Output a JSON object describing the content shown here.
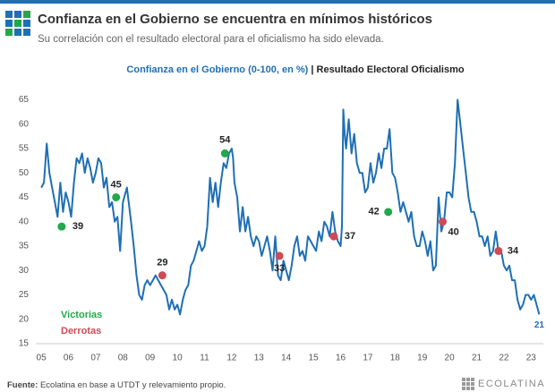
{
  "chart_data": {
    "type": "line",
    "title": "Confianza en el Gobierno se encuentra en mínimos históricos",
    "subtitle": "Su correlación con el resultado electoral para el oficialismo ha sido elevada.",
    "header_right": "| Resultado Electoral Oficialismo",
    "source_label": "Fuente:",
    "source": "Ecolatina en base a UTDT y relevamiento propio.",
    "brand": "ECOLATINA",
    "xlim": [
      2004.8,
      2023.45
    ],
    "ylim": [
      15,
      66
    ],
    "yticks": [
      15,
      20,
      25,
      30,
      35,
      40,
      45,
      50,
      55,
      60,
      65
    ],
    "xticks": [
      {
        "value": 2005,
        "label": "05"
      },
      {
        "value": 2006,
        "label": "06"
      },
      {
        "value": 2007,
        "label": "07"
      },
      {
        "value": 2008,
        "label": "08"
      },
      {
        "value": 2009,
        "label": "09"
      },
      {
        "value": 2010,
        "label": "10"
      },
      {
        "value": 2011,
        "label": "11"
      },
      {
        "value": 2012,
        "label": "12"
      },
      {
        "value": 2013,
        "label": "13"
      },
      {
        "value": 2014,
        "label": "14"
      },
      {
        "value": 2015,
        "label": "15"
      },
      {
        "value": 2016,
        "label": "16"
      },
      {
        "value": 2017,
        "label": "17"
      },
      {
        "value": 2018,
        "label": "18"
      },
      {
        "value": 2019,
        "label": "19"
      },
      {
        "value": 2020,
        "label": "20"
      },
      {
        "value": 2021,
        "label": "21"
      },
      {
        "value": 2022,
        "label": "22"
      },
      {
        "value": 2023,
        "label": "23"
      }
    ],
    "series": [
      {
        "name": "Confianza en el Gobierno (0-100, en %)",
        "type": "line",
        "color": "#1f6fb5",
        "x": [
          2005.0,
          2005.1,
          2005.2,
          2005.3,
          2005.4,
          2005.5,
          2005.6,
          2005.7,
          2005.8,
          2005.9,
          2006.0,
          2006.1,
          2006.2,
          2006.3,
          2006.4,
          2006.5,
          2006.6,
          2006.7,
          2006.8,
          2006.9,
          2007.0,
          2007.1,
          2007.2,
          2007.3,
          2007.4,
          2007.5,
          2007.6,
          2007.7,
          2007.8,
          2007.9,
          2008.0,
          2008.1,
          2008.15,
          2008.3,
          2008.4,
          2008.5,
          2008.6,
          2008.7,
          2008.8,
          2008.9,
          2009.0,
          2009.2,
          2009.4,
          2009.6,
          2009.7,
          2009.8,
          2009.9,
          2010.0,
          2010.1,
          2010.2,
          2010.3,
          2010.4,
          2010.5,
          2010.6,
          2010.7,
          2010.8,
          2010.9,
          2011.0,
          2011.1,
          2011.2,
          2011.3,
          2011.4,
          2011.5,
          2011.6,
          2011.7,
          2011.8,
          2011.9,
          2012.0,
          2012.05,
          2012.1,
          2012.2,
          2012.3,
          2012.4,
          2012.5,
          2012.6,
          2012.7,
          2012.8,
          2012.9,
          2013.0,
          2013.1,
          2013.2,
          2013.3,
          2013.4,
          2013.5,
          2013.6,
          2013.7,
          2013.8,
          2013.9,
          2014.0,
          2014.1,
          2014.2,
          2014.3,
          2014.4,
          2014.5,
          2014.6,
          2014.7,
          2014.8,
          2014.9,
          2015.0,
          2015.1,
          2015.2,
          2015.3,
          2015.4,
          2015.5,
          2015.6,
          2015.7,
          2015.8,
          2015.9,
          2016.0,
          2016.05,
          2016.1,
          2016.15,
          2016.2,
          2016.3,
          2016.4,
          2016.5,
          2016.6,
          2016.7,
          2016.8,
          2016.9,
          2017.0,
          2017.1,
          2017.2,
          2017.3,
          2017.4,
          2017.5,
          2017.6,
          2017.7,
          2017.8,
          2017.9,
          2018.0,
          2018.1,
          2018.2,
          2018.3,
          2018.4,
          2018.5,
          2018.6,
          2018.7,
          2018.8,
          2018.9,
          2019.0,
          2019.1,
          2019.2,
          2019.3,
          2019.4,
          2019.5,
          2019.6,
          2019.7,
          2019.8,
          2019.9,
          2020.0,
          2020.1,
          2020.2,
          2020.3,
          2020.4,
          2020.5,
          2020.6,
          2020.7,
          2020.8,
          2020.9,
          2021.0,
          2021.1,
          2021.2,
          2021.3,
          2021.4,
          2021.5,
          2021.6,
          2021.7,
          2021.8,
          2021.9,
          2022.0,
          2022.1,
          2022.2,
          2022.3,
          2022.4,
          2022.5,
          2022.6,
          2022.7,
          2022.8,
          2022.9,
          2023.0,
          2023.1,
          2023.2,
          2023.3
        ],
        "values": [
          47,
          48,
          56,
          50,
          47,
          44,
          41,
          48,
          42,
          46,
          44,
          41,
          48,
          53,
          52,
          54,
          50,
          53,
          51,
          48,
          50,
          53,
          52,
          47,
          49,
          43,
          44,
          40,
          41,
          34,
          44,
          46,
          47,
          40,
          35,
          29,
          25,
          24,
          27,
          28,
          27,
          29,
          27,
          25,
          22,
          24,
          22,
          23,
          21,
          24,
          26,
          27,
          31,
          32,
          34,
          36,
          34,
          35,
          39,
          49,
          44,
          48,
          43,
          48,
          52,
          51,
          54,
          55,
          53,
          48,
          45,
          38,
          43,
          38,
          41,
          37,
          35,
          37,
          36,
          33,
          35,
          37,
          34,
          30,
          37,
          29,
          28,
          32,
          30,
          28,
          31,
          35,
          37,
          33,
          34,
          32,
          37,
          36,
          35,
          34,
          38,
          36,
          40,
          39,
          37,
          42,
          38,
          36,
          35,
          39,
          63,
          58,
          55,
          61,
          54,
          58,
          52,
          50,
          50,
          46,
          47,
          52,
          48,
          50,
          54,
          51,
          55,
          55,
          59,
          50,
          49,
          46,
          42,
          44,
          42,
          40,
          42,
          37,
          35,
          35,
          38,
          36,
          33,
          36,
          30,
          31,
          45,
          38,
          40,
          46,
          46,
          45,
          52,
          65,
          60,
          55,
          50,
          45,
          42,
          42,
          40,
          37,
          37,
          35,
          37,
          33,
          34,
          38,
          34,
          34,
          31,
          30,
          31,
          28,
          28,
          24,
          22,
          23,
          25,
          25,
          24,
          25,
          23,
          21
        ]
      },
      {
        "name": "Victorias",
        "type": "scatter",
        "color": "#22a84a",
        "x": [
          2005.75,
          2007.75,
          2011.75,
          2017.75
        ],
        "values": [
          39,
          45,
          54,
          42
        ]
      },
      {
        "name": "Derrotas",
        "type": "scatter",
        "color": "#cc4b55",
        "x": [
          2009.45,
          2013.75,
          2015.75,
          2019.75,
          2021.8
        ],
        "values": [
          29,
          33,
          37,
          40,
          34
        ]
      }
    ]
  }
}
